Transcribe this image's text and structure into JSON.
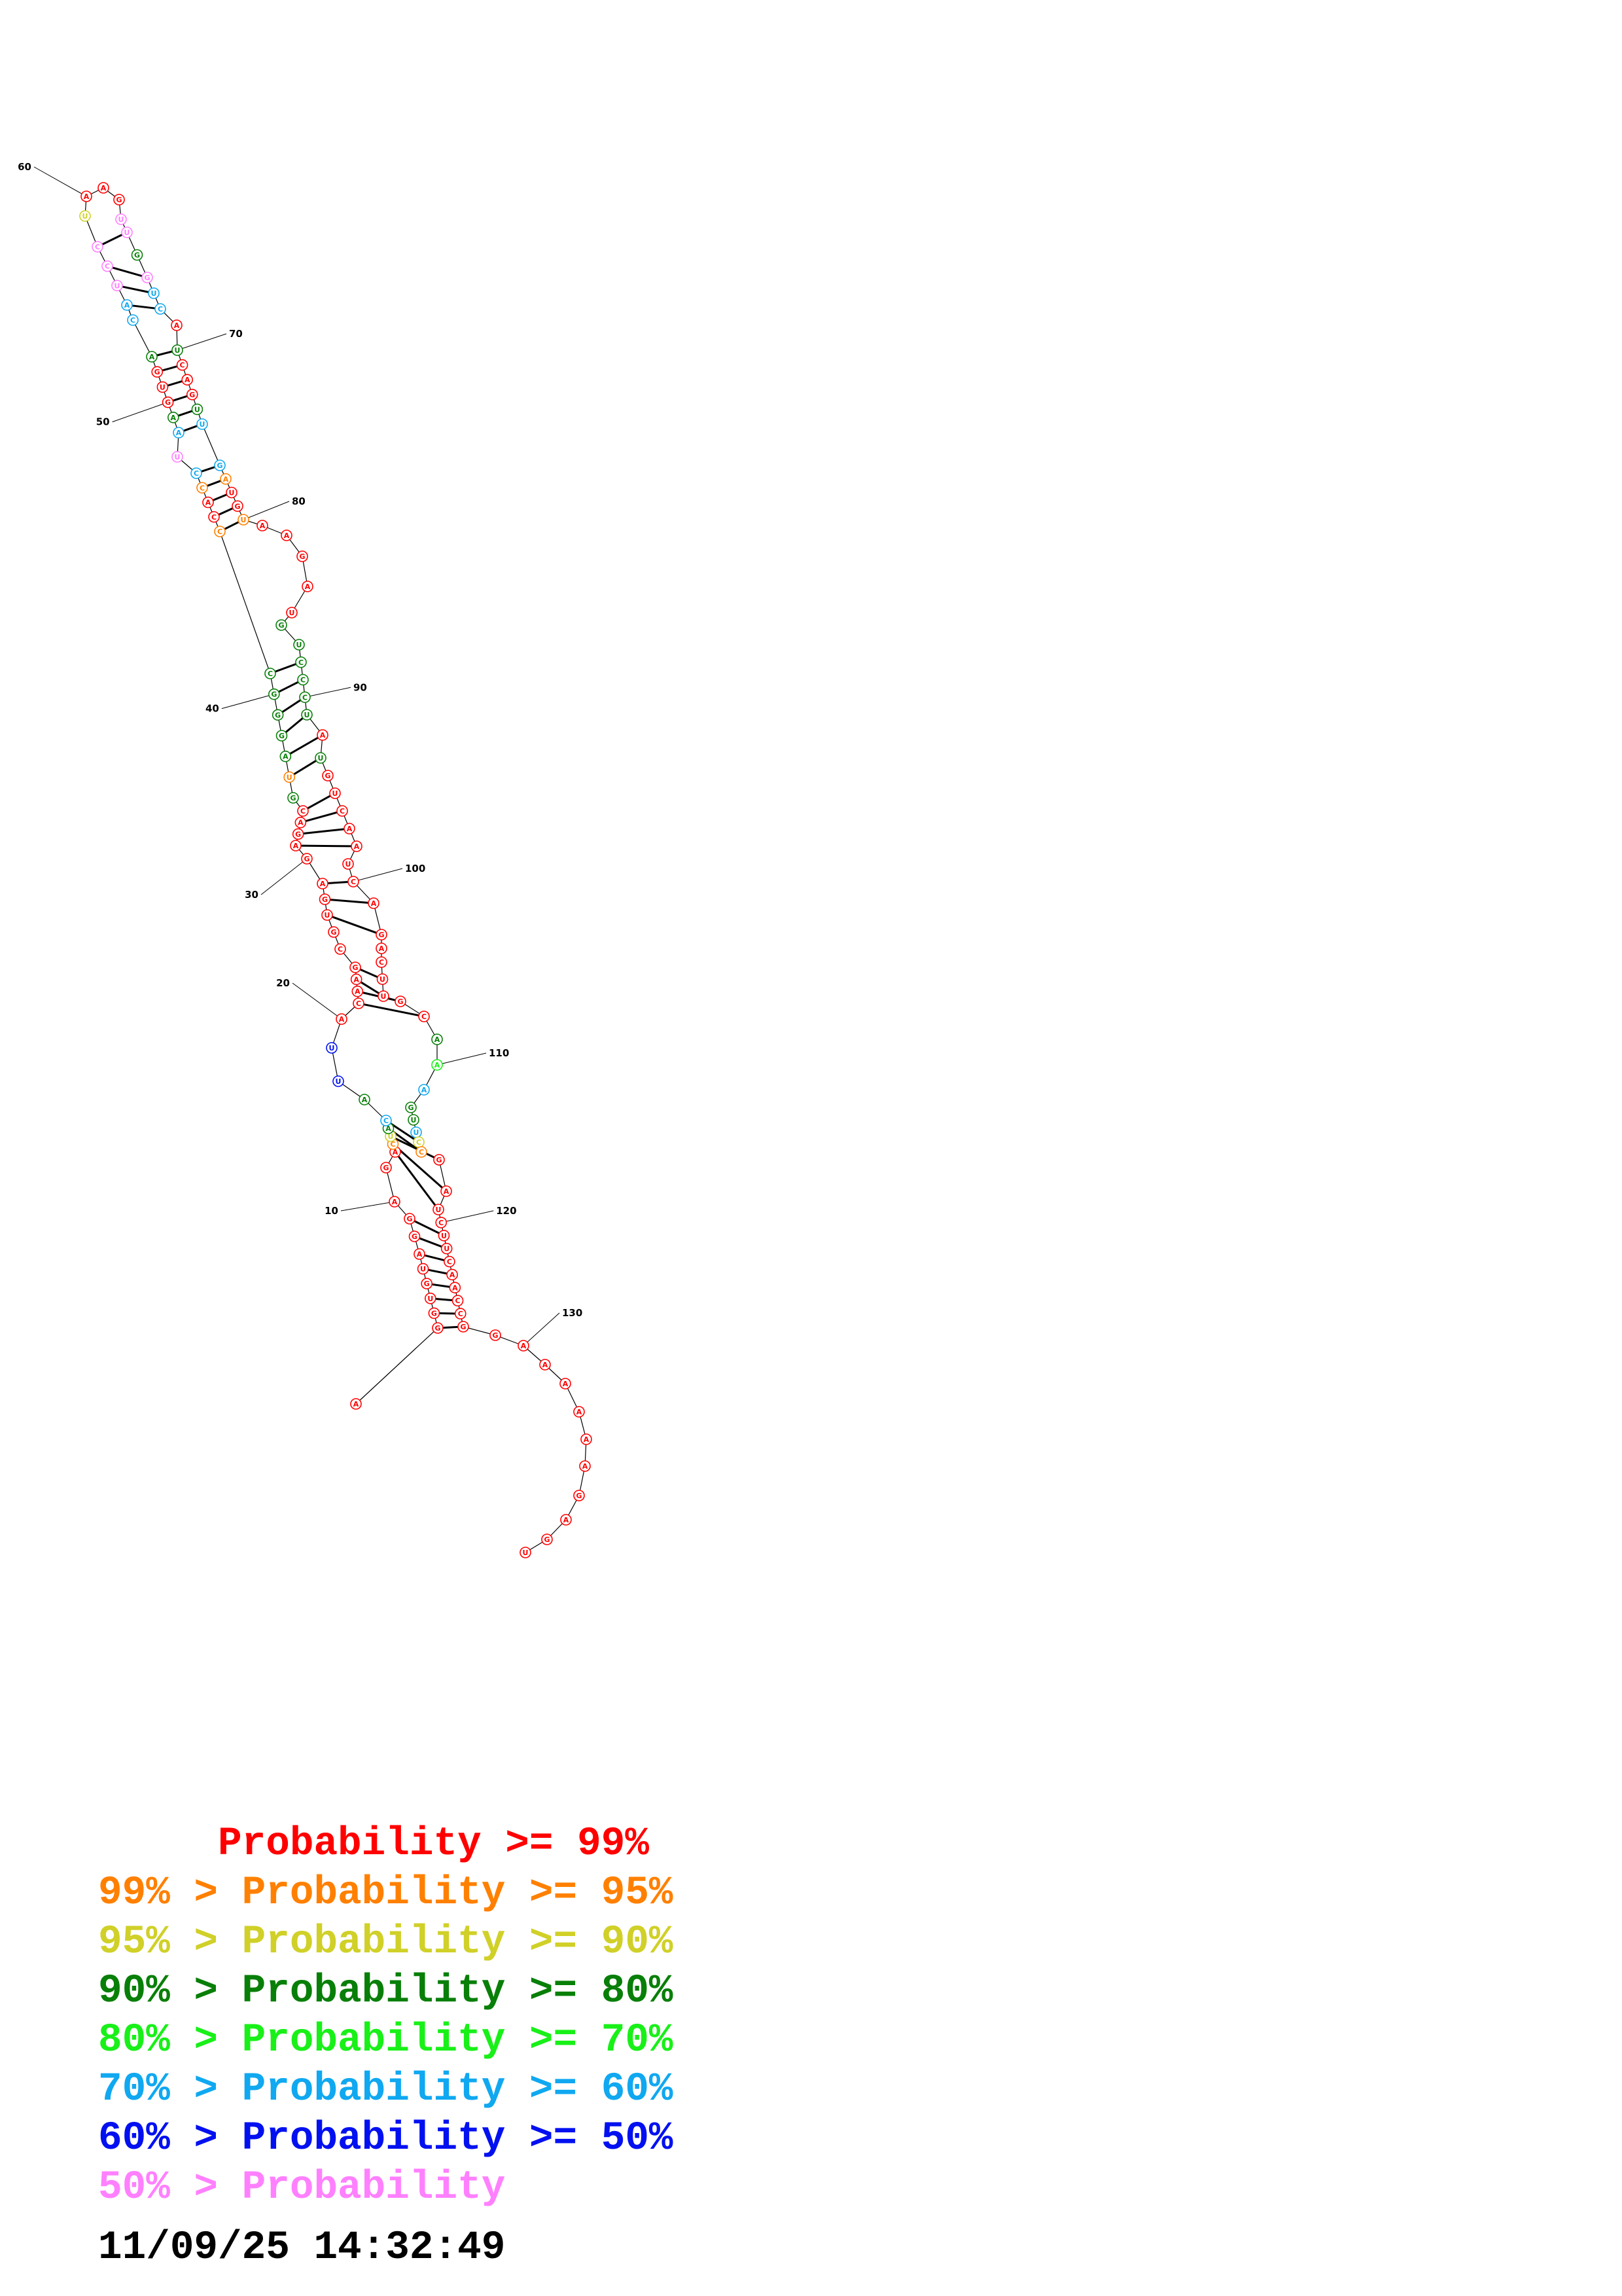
{
  "palette": {
    "red": "#ff0000",
    "orange": "#ff8000",
    "yellow": "#d0d028",
    "dkgreen": "#087f08",
    "green": "#18f018",
    "cyan": "#10a8f0",
    "blue": "#0010f0",
    "pink": "#ff80ff"
  },
  "legend": [
    {
      "text": "     Probability >= 99%",
      "color": "#ff0000"
    },
    {
      "text": "99% > Probability >= 95%",
      "color": "#ff8000"
    },
    {
      "text": "95% > Probability >= 90%",
      "color": "#d0d028"
    },
    {
      "text": "90% > Probability >= 80%",
      "color": "#087f08"
    },
    {
      "text": "80% > Probability >= 70%",
      "color": "#18f018"
    },
    {
      "text": "70% > Probability >= 60%",
      "color": "#10a8f0"
    },
    {
      "text": "60% > Probability >= 50%",
      "color": "#0010f0"
    },
    {
      "text": "50% > Probability",
      "color": "#ff80ff"
    }
  ],
  "timestamp": "11/09/25 14:32:49",
  "structure": {
    "position_labels": [
      "10",
      "20",
      "30",
      "40",
      "50",
      "60",
      "70",
      "80",
      "90",
      "100",
      "110",
      "120",
      "130"
    ],
    "nucleotides": [
      {
        "n": 1,
        "b": "A",
        "c": "red"
      },
      {
        "n": 2,
        "b": "G",
        "c": "red"
      },
      {
        "n": 3,
        "b": "G",
        "c": "red"
      },
      {
        "n": 4,
        "b": "U",
        "c": "red"
      },
      {
        "n": 5,
        "b": "G",
        "c": "red"
      },
      {
        "n": 6,
        "b": "U",
        "c": "red"
      },
      {
        "n": 7,
        "b": "A",
        "c": "red"
      },
      {
        "n": 8,
        "b": "G",
        "c": "red"
      },
      {
        "n": 9,
        "b": "G",
        "c": "red"
      },
      {
        "n": 10,
        "b": "A",
        "c": "red"
      },
      {
        "n": 11,
        "b": "G",
        "c": "red"
      },
      {
        "n": 12,
        "b": "A",
        "c": "red"
      },
      {
        "n": 13,
        "b": "C",
        "c": "orange"
      },
      {
        "n": 14,
        "b": "U",
        "c": "yellow"
      },
      {
        "n": 15,
        "b": "A",
        "c": "dkgreen"
      },
      {
        "n": 16,
        "b": "C",
        "c": "cyan"
      },
      {
        "n": 17,
        "b": "A",
        "c": "dkgreen"
      },
      {
        "n": 18,
        "b": "U",
        "c": "blue"
      },
      {
        "n": 19,
        "b": "U",
        "c": "blue"
      },
      {
        "n": 20,
        "b": "A",
        "c": "red"
      },
      {
        "n": 21,
        "b": "C",
        "c": "red"
      },
      {
        "n": 22,
        "b": "A",
        "c": "red"
      },
      {
        "n": 23,
        "b": "A",
        "c": "red"
      },
      {
        "n": 24,
        "b": "G",
        "c": "red"
      },
      {
        "n": 25,
        "b": "C",
        "c": "red"
      },
      {
        "n": 26,
        "b": "G",
        "c": "red"
      },
      {
        "n": 27,
        "b": "U",
        "c": "red"
      },
      {
        "n": 28,
        "b": "G",
        "c": "red"
      },
      {
        "n": 29,
        "b": "A",
        "c": "red"
      },
      {
        "n": 30,
        "b": "G",
        "c": "red"
      },
      {
        "n": 31,
        "b": "A",
        "c": "red"
      },
      {
        "n": 32,
        "b": "G",
        "c": "red"
      },
      {
        "n": 33,
        "b": "A",
        "c": "red"
      },
      {
        "n": 34,
        "b": "C",
        "c": "red"
      },
      {
        "n": 35,
        "b": "G",
        "c": "dkgreen"
      },
      {
        "n": 36,
        "b": "U",
        "c": "orange"
      },
      {
        "n": 37,
        "b": "A",
        "c": "dkgreen"
      },
      {
        "n": 38,
        "b": "G",
        "c": "dkgreen"
      },
      {
        "n": 39,
        "b": "G",
        "c": "dkgreen"
      },
      {
        "n": 40,
        "b": "G",
        "c": "dkgreen"
      },
      {
        "n": 41,
        "b": "C",
        "c": "dkgreen"
      },
      {
        "n": 42,
        "b": "C",
        "c": "orange"
      },
      {
        "n": 43,
        "b": "C",
        "c": "red"
      },
      {
        "n": 44,
        "b": "A",
        "c": "red"
      },
      {
        "n": 45,
        "b": "C",
        "c": "orange"
      },
      {
        "n": 46,
        "b": "C",
        "c": "cyan"
      },
      {
        "n": 47,
        "b": "U",
        "c": "pink"
      },
      {
        "n": 48,
        "b": "A",
        "c": "cyan"
      },
      {
        "n": 49,
        "b": "A",
        "c": "dkgreen"
      },
      {
        "n": 50,
        "b": "G",
        "c": "red"
      },
      {
        "n": 51,
        "b": "U",
        "c": "red"
      },
      {
        "n": 52,
        "b": "G",
        "c": "red"
      },
      {
        "n": 53,
        "b": "A",
        "c": "dkgreen"
      },
      {
        "n": 54,
        "b": "C",
        "c": "cyan"
      },
      {
        "n": 55,
        "b": "A",
        "c": "cyan"
      },
      {
        "n": 56,
        "b": "U",
        "c": "pink"
      },
      {
        "n": 57,
        "b": "C",
        "c": "pink"
      },
      {
        "n": 58,
        "b": "C",
        "c": "pink"
      },
      {
        "n": 59,
        "b": "U",
        "c": "yellow"
      },
      {
        "n": 60,
        "b": "A",
        "c": "red"
      },
      {
        "n": 61,
        "b": "A",
        "c": "red"
      },
      {
        "n": 62,
        "b": "G",
        "c": "red"
      },
      {
        "n": 63,
        "b": "U",
        "c": "pink"
      },
      {
        "n": 64,
        "b": "U",
        "c": "pink"
      },
      {
        "n": 65,
        "b": "G",
        "c": "dkgreen"
      },
      {
        "n": 66,
        "b": "G",
        "c": "pink"
      },
      {
        "n": 67,
        "b": "U",
        "c": "cyan"
      },
      {
        "n": 68,
        "b": "C",
        "c": "cyan"
      },
      {
        "n": 69,
        "b": "A",
        "c": "red"
      },
      {
        "n": 70,
        "b": "U",
        "c": "dkgreen"
      },
      {
        "n": 71,
        "b": "C",
        "c": "red"
      },
      {
        "n": 72,
        "b": "A",
        "c": "red"
      },
      {
        "n": 73,
        "b": "G",
        "c": "red"
      },
      {
        "n": 74,
        "b": "U",
        "c": "dkgreen"
      },
      {
        "n": 75,
        "b": "U",
        "c": "cyan"
      },
      {
        "n": 76,
        "b": "G",
        "c": "cyan"
      },
      {
        "n": 77,
        "b": "A",
        "c": "orange"
      },
      {
        "n": 78,
        "b": "U",
        "c": "red"
      },
      {
        "n": 79,
        "b": "G",
        "c": "red"
      },
      {
        "n": 80,
        "b": "U",
        "c": "orange"
      },
      {
        "n": 81,
        "b": "A",
        "c": "red"
      },
      {
        "n": 82,
        "b": "A",
        "c": "red"
      },
      {
        "n": 83,
        "b": "G",
        "c": "red"
      },
      {
        "n": 84,
        "b": "A",
        "c": "red"
      },
      {
        "n": 85,
        "b": "U",
        "c": "red"
      },
      {
        "n": 86,
        "b": "G",
        "c": "dkgreen"
      },
      {
        "n": 87,
        "b": "U",
        "c": "dkgreen"
      },
      {
        "n": 88,
        "b": "C",
        "c": "dkgreen"
      },
      {
        "n": 89,
        "b": "C",
        "c": "dkgreen"
      },
      {
        "n": 90,
        "b": "C",
        "c": "dkgreen"
      },
      {
        "n": 91,
        "b": "U",
        "c": "dkgreen"
      },
      {
        "n": 92,
        "b": "A",
        "c": "red"
      },
      {
        "n": 93,
        "b": "U",
        "c": "dkgreen"
      },
      {
        "n": 94,
        "b": "G",
        "c": "red"
      },
      {
        "n": 95,
        "b": "U",
        "c": "red"
      },
      {
        "n": 96,
        "b": "C",
        "c": "red"
      },
      {
        "n": 97,
        "b": "A",
        "c": "red"
      },
      {
        "n": 98,
        "b": "A",
        "c": "red"
      },
      {
        "n": 99,
        "b": "U",
        "c": "red"
      },
      {
        "n": 100,
        "b": "C",
        "c": "red"
      },
      {
        "n": 101,
        "b": "A",
        "c": "red"
      },
      {
        "n": 102,
        "b": "G",
        "c": "red"
      },
      {
        "n": 103,
        "b": "A",
        "c": "red"
      },
      {
        "n": 104,
        "b": "C",
        "c": "red"
      },
      {
        "n": 105,
        "b": "U",
        "c": "red"
      },
      {
        "n": 106,
        "b": "U",
        "c": "red"
      },
      {
        "n": 107,
        "b": "G",
        "c": "red"
      },
      {
        "n": 108,
        "b": "C",
        "c": "red"
      },
      {
        "n": 109,
        "b": "A",
        "c": "dkgreen"
      },
      {
        "n": 110,
        "b": "A",
        "c": "green"
      },
      {
        "n": 111,
        "b": "A",
        "c": "cyan"
      },
      {
        "n": 112,
        "b": "G",
        "c": "dkgreen"
      },
      {
        "n": 113,
        "b": "U",
        "c": "dkgreen"
      },
      {
        "n": 114,
        "b": "U",
        "c": "cyan"
      },
      {
        "n": 115,
        "b": "C",
        "c": "yellow"
      },
      {
        "n": 116,
        "b": "C",
        "c": "orange"
      },
      {
        "n": 117,
        "b": "G",
        "c": "red"
      },
      {
        "n": 118,
        "b": "A",
        "c": "red"
      },
      {
        "n": 119,
        "b": "U",
        "c": "red"
      },
      {
        "n": 120,
        "b": "C",
        "c": "red"
      },
      {
        "n": 121,
        "b": "U",
        "c": "red"
      },
      {
        "n": 122,
        "b": "U",
        "c": "red"
      },
      {
        "n": 123,
        "b": "C",
        "c": "red"
      },
      {
        "n": 124,
        "b": "A",
        "c": "red"
      },
      {
        "n": 125,
        "b": "A",
        "c": "red"
      },
      {
        "n": 126,
        "b": "C",
        "c": "red"
      },
      {
        "n": 127,
        "b": "C",
        "c": "red"
      },
      {
        "n": 128,
        "b": "G",
        "c": "red"
      },
      {
        "n": 129,
        "b": "G",
        "c": "red"
      },
      {
        "n": 130,
        "b": "A",
        "c": "red"
      },
      {
        "n": 131,
        "b": "A",
        "c": "red"
      },
      {
        "n": 132,
        "b": "A",
        "c": "red"
      },
      {
        "n": 133,
        "b": "A",
        "c": "red"
      },
      {
        "n": 134,
        "b": "A",
        "c": "red"
      },
      {
        "n": 135,
        "b": "A",
        "c": "red"
      },
      {
        "n": 136,
        "b": "G",
        "c": "red"
      },
      {
        "n": 137,
        "b": "A",
        "c": "red"
      },
      {
        "n": 138,
        "b": "G",
        "c": "red"
      },
      {
        "n": 139,
        "b": "U",
        "c": "red"
      }
    ],
    "pairs": [
      [
        2,
        128
      ],
      [
        3,
        127
      ],
      [
        4,
        126
      ],
      [
        5,
        125
      ],
      [
        6,
        124
      ],
      [
        7,
        123
      ],
      [
        8,
        122
      ],
      [
        9,
        121
      ],
      [
        12,
        119
      ],
      [
        13,
        118
      ],
      [
        14,
        117
      ],
      [
        15,
        116
      ],
      [
        16,
        115
      ],
      [
        21,
        108
      ],
      [
        22,
        107
      ],
      [
        23,
        106
      ],
      [
        24,
        105
      ],
      [
        27,
        102
      ],
      [
        28,
        101
      ],
      [
        29,
        100
      ],
      [
        31,
        98
      ],
      [
        32,
        97
      ],
      [
        33,
        96
      ],
      [
        34,
        95
      ],
      [
        36,
        93
      ],
      [
        37,
        92
      ],
      [
        38,
        91
      ],
      [
        39,
        90
      ],
      [
        40,
        89
      ],
      [
        41,
        88
      ],
      [
        42,
        80
      ],
      [
        43,
        79
      ],
      [
        44,
        78
      ],
      [
        45,
        77
      ],
      [
        46,
        76
      ],
      [
        48,
        75
      ],
      [
        49,
        74
      ],
      [
        50,
        73
      ],
      [
        51,
        72
      ],
      [
        52,
        71
      ],
      [
        53,
        70
      ],
      [
        55,
        68
      ],
      [
        56,
        67
      ],
      [
        57,
        66
      ],
      [
        58,
        64
      ]
    ]
  }
}
